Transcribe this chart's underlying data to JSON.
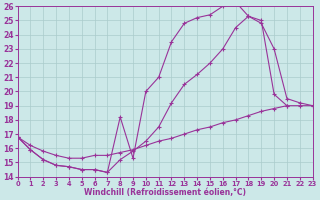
{
  "xlabel": "Windchill (Refroidissement éolien,°C)",
  "xlim": [
    0,
    23
  ],
  "ylim": [
    14,
    26
  ],
  "xticks": [
    0,
    1,
    2,
    3,
    4,
    5,
    6,
    7,
    8,
    9,
    10,
    11,
    12,
    13,
    14,
    15,
    16,
    17,
    18,
    19,
    20,
    21,
    22,
    23
  ],
  "yticks": [
    14,
    15,
    16,
    17,
    18,
    19,
    20,
    21,
    22,
    23,
    24,
    25,
    26
  ],
  "bg_color": "#cce8e8",
  "grid_color": "#aacccc",
  "line_color": "#993399",
  "curve1_x": [
    0,
    1,
    2,
    3,
    4,
    5,
    6,
    7,
    8,
    9,
    10,
    11,
    12,
    13,
    14,
    15,
    16,
    17,
    18,
    19,
    20,
    21
  ],
  "curve1_y": [
    16.8,
    15.9,
    15.2,
    14.8,
    14.7,
    14.5,
    14.5,
    14.3,
    18.2,
    15.3,
    20.0,
    21.0,
    23.5,
    24.8,
    25.2,
    25.4,
    26.0,
    26.3,
    25.3,
    25.0,
    19.8,
    19.0
  ],
  "curve2_x": [
    0,
    1,
    2,
    3,
    4,
    5,
    6,
    7,
    8,
    9,
    10,
    11,
    12,
    13,
    14,
    15,
    16,
    17,
    18,
    19,
    20,
    21,
    22,
    23
  ],
  "curve2_y": [
    16.8,
    15.9,
    15.2,
    14.8,
    14.7,
    14.5,
    14.5,
    14.3,
    15.2,
    15.8,
    16.5,
    17.5,
    19.2,
    20.5,
    21.2,
    22.0,
    23.0,
    24.5,
    25.3,
    24.8,
    23.0,
    19.5,
    19.2,
    19.0
  ],
  "curve3_x": [
    0,
    1,
    2,
    3,
    4,
    5,
    6,
    7,
    8,
    9,
    10,
    11,
    12,
    13,
    14,
    15,
    16,
    17,
    18,
    19,
    20,
    21,
    22,
    23
  ],
  "curve3_y": [
    16.8,
    16.2,
    15.8,
    15.5,
    15.3,
    15.3,
    15.5,
    15.5,
    15.7,
    15.9,
    16.2,
    16.5,
    16.7,
    17.0,
    17.3,
    17.5,
    17.8,
    18.0,
    18.3,
    18.6,
    18.8,
    19.0,
    19.0,
    19.0
  ]
}
